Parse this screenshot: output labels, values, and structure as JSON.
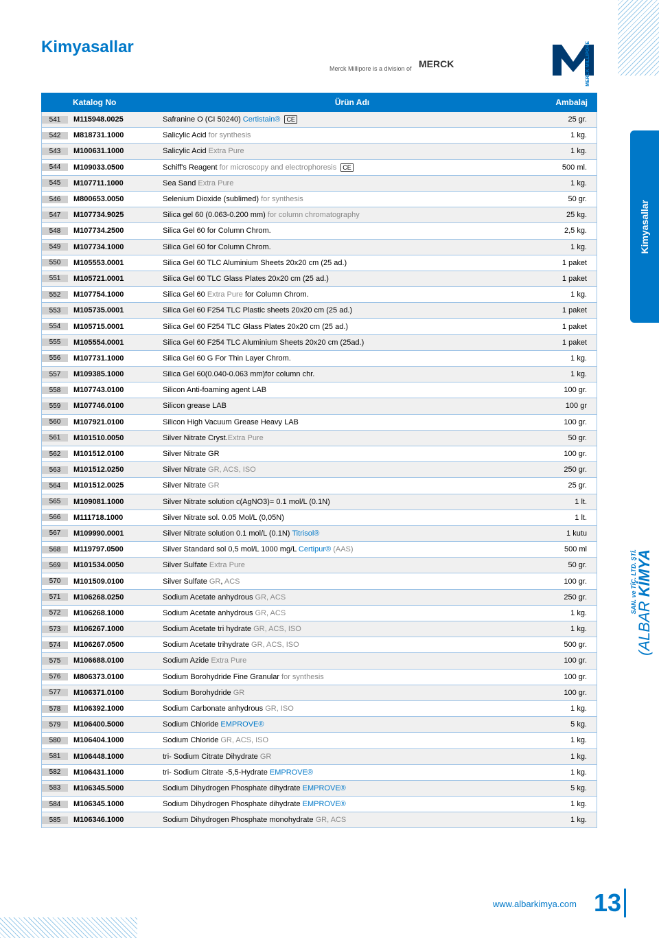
{
  "page_title": "Kimyasallar",
  "division_text": "Merck Millipore is a division of",
  "merck_label": "MERCK",
  "vert_brand": "MERCK MILLIPORE",
  "side_tab": "Kimyasallar",
  "company": {
    "part1": "(ALBAR ",
    "part2": "KİMYA"
  },
  "company_sub": "SAN. ve TİC. LTD. ŞTİ.",
  "footer_url": "www.albarkimya.com",
  "page_number": "13",
  "headers": {
    "katalog": "Katalog No",
    "urun": "Ürün Adı",
    "ambalaj": "Ambalaj"
  },
  "colors": {
    "brand_blue": "#0078c8",
    "row_alt": "#f0f0f0",
    "num_bg": "#cfcfcf",
    "border": "#9dc3e6",
    "grey_text": "#888"
  },
  "rows": [
    {
      "n": "541",
      "cat": "M115948.0025",
      "name": [
        {
          "t": "Safranine O (CI 50240) "
        },
        {
          "t": "Certistain®",
          "c": "bl"
        },
        {
          "t": " ",
          "ce": true
        }
      ],
      "pkg": "25 gr."
    },
    {
      "n": "542",
      "cat": "M818731.1000",
      "name": [
        {
          "t": "Salicylic Acid "
        },
        {
          "t": "for synthesis",
          "c": "gr"
        }
      ],
      "pkg": "1 kg."
    },
    {
      "n": "543",
      "cat": "M100631.1000",
      "name": [
        {
          "t": "Salicylic Acid "
        },
        {
          "t": "Extra Pure",
          "c": "gr"
        }
      ],
      "pkg": "1 kg."
    },
    {
      "n": "544",
      "cat": "M109033.0500",
      "name": [
        {
          "t": "Schiff's Reagent "
        },
        {
          "t": "for microscopy and electrophoresis ",
          "c": "gr"
        },
        {
          "t": "",
          "ce": true
        }
      ],
      "pkg": "500 ml."
    },
    {
      "n": "545",
      "cat": "M107711.1000",
      "name": [
        {
          "t": "Sea Sand "
        },
        {
          "t": "Extra Pure",
          "c": "gr"
        }
      ],
      "pkg": "1 kg."
    },
    {
      "n": "546",
      "cat": "M800653.0050",
      "name": [
        {
          "t": "Selenium Dioxide (sublimed) "
        },
        {
          "t": "for synthesis",
          "c": "gr"
        }
      ],
      "pkg": "50 gr."
    },
    {
      "n": "547",
      "cat": "M107734.9025",
      "name": [
        {
          "t": "Silica gel 60 (0.063-0.200 mm) "
        },
        {
          "t": "for column chromatography",
          "c": "gr"
        }
      ],
      "pkg": "25 kg."
    },
    {
      "n": "548",
      "cat": "M107734.2500",
      "name": [
        {
          "t": "Silica Gel 60 for Column Chrom."
        }
      ],
      "pkg": "2,5 kg."
    },
    {
      "n": "549",
      "cat": "M107734.1000",
      "name": [
        {
          "t": "Silica Gel 60 for Column Chrom."
        }
      ],
      "pkg": "1 kg."
    },
    {
      "n": "550",
      "cat": "M105553.0001",
      "name": [
        {
          "t": "Silica Gel 60 TLC Aluminium Sheets 20x20 cm (25 ad.)"
        }
      ],
      "pkg": "1 paket"
    },
    {
      "n": "551",
      "cat": "M105721.0001",
      "name": [
        {
          "t": "Silica Gel 60 TLC  Glass Plates 20x20 cm (25 ad.)"
        }
      ],
      "pkg": "1 paket"
    },
    {
      "n": "552",
      "cat": "M107754.1000",
      "name": [
        {
          "t": "Silica Gel 60 "
        },
        {
          "t": "Extra Pure",
          "c": "gr"
        },
        {
          "t": " for Column Chrom."
        }
      ],
      "pkg": "1 kg."
    },
    {
      "n": "553",
      "cat": "M105735.0001",
      "name": [
        {
          "t": "Silica Gel 60 F254 TLC  Plastic sheets 20x20 cm (25 ad.)"
        }
      ],
      "pkg": "1 paket"
    },
    {
      "n": "554",
      "cat": "M105715.0001",
      "name": [
        {
          "t": "Silica Gel 60 F254 TLC Glass Plates 20x20 cm  (25 ad.)"
        }
      ],
      "pkg": "1 paket"
    },
    {
      "n": "555",
      "cat": "M105554.0001",
      "name": [
        {
          "t": "Silica Gel 60 F254 TLC Aluminium Sheets 20x20 cm (25ad.)"
        }
      ],
      "pkg": "1 paket"
    },
    {
      "n": "556",
      "cat": "M107731.1000",
      "name": [
        {
          "t": "Silica Gel 60 G For Thin Layer Chrom."
        }
      ],
      "pkg": "1 kg."
    },
    {
      "n": "557",
      "cat": "M109385.1000",
      "name": [
        {
          "t": "Silica Gel 60(0.040-0.063 mm)for column chr."
        }
      ],
      "pkg": "1 kg."
    },
    {
      "n": "558",
      "cat": "M107743.0100",
      "name": [
        {
          "t": "Silicon Anti-foaming agent LAB"
        }
      ],
      "pkg": "100 gr."
    },
    {
      "n": "559",
      "cat": "M107746.0100",
      "name": [
        {
          "t": "Silicon grease LAB"
        }
      ],
      "pkg": "100 gr"
    },
    {
      "n": "560",
      "cat": "M107921.0100",
      "name": [
        {
          "t": "Silicon High Vacuum Grease Heavy LAB"
        }
      ],
      "pkg": "100 gr."
    },
    {
      "n": "561",
      "cat": "M101510.0050",
      "name": [
        {
          "t": "Silver Nitrate Cryst."
        },
        {
          "t": "Extra Pure",
          "c": "gr"
        }
      ],
      "pkg": "50 gr."
    },
    {
      "n": "562",
      "cat": "M101512.0100",
      "name": [
        {
          "t": "Silver Nitrate GR"
        }
      ],
      "pkg": "100 gr."
    },
    {
      "n": "563",
      "cat": "M101512.0250",
      "name": [
        {
          "t": "Silver Nitrate "
        },
        {
          "t": "GR, ACS, ISO",
          "c": "gr"
        }
      ],
      "pkg": "250 gr."
    },
    {
      "n": "564",
      "cat": "M101512.0025",
      "name": [
        {
          "t": "Silver Nitrate "
        },
        {
          "t": "GR",
          "c": "gr"
        }
      ],
      "pkg": "25 gr."
    },
    {
      "n": "565",
      "cat": "M109081.1000",
      "name": [
        {
          "t": "Silver Nitrate solution c(AgNO3)= 0.1 mol/L (0.1N)"
        }
      ],
      "pkg": "1 lt."
    },
    {
      "n": "566",
      "cat": "M111718.1000",
      "name": [
        {
          "t": "Silver Nitrate sol. 0.05 Mol/L (0,05N)"
        }
      ],
      "pkg": "1 lt."
    },
    {
      "n": "567",
      "cat": "M109990.0001",
      "name": [
        {
          "t": "Silver Nitrate solution 0.1 mol/L (0.1N) "
        },
        {
          "t": "Titrisol®",
          "c": "bl"
        }
      ],
      "pkg": "1 kutu"
    },
    {
      "n": "568",
      "cat": "M119797.0500",
      "name": [
        {
          "t": "Silver Standard sol 0,5 mol/L 1000 mg/L "
        },
        {
          "t": "Certipur®",
          "c": "bl"
        },
        {
          "t": " (AAS)",
          "c": "gr"
        }
      ],
      "pkg": "500 ml"
    },
    {
      "n": "569",
      "cat": "M101534.0050",
      "name": [
        {
          "t": "Silver Sulfate "
        },
        {
          "t": "Extra Pure",
          "c": "gr"
        }
      ],
      "pkg": "50 gr."
    },
    {
      "n": "570",
      "cat": "M101509.0100",
      "name": [
        {
          "t": "Silver Sulfate "
        },
        {
          "t": "GR",
          "c": "gr"
        },
        {
          "t": ", "
        },
        {
          "t": "  ACS",
          "c": "gr"
        }
      ],
      "pkg": "100 gr."
    },
    {
      "n": "571",
      "cat": "M106268.0250",
      "name": [
        {
          "t": "Sodium Acetate anhydrous "
        },
        {
          "t": "GR, ACS",
          "c": "gr"
        }
      ],
      "pkg": "250 gr."
    },
    {
      "n": "572",
      "cat": "M106268.1000",
      "name": [
        {
          "t": "Sodium Acetate anhydrous "
        },
        {
          "t": "GR, ACS",
          "c": "gr"
        }
      ],
      "pkg": "1 kg."
    },
    {
      "n": "573",
      "cat": "M106267.1000",
      "name": [
        {
          "t": "Sodium Acetate tri hydrate "
        },
        {
          "t": "GR, ACS, ISO",
          "c": "gr"
        }
      ],
      "pkg": "1 kg."
    },
    {
      "n": "574",
      "cat": "M106267.0500",
      "name": [
        {
          "t": "Sodium Acetate trihydrate "
        },
        {
          "t": "GR, ACS, ISO",
          "c": "gr"
        }
      ],
      "pkg": "500 gr."
    },
    {
      "n": "575",
      "cat": "M106688.0100",
      "name": [
        {
          "t": "Sodium Azide "
        },
        {
          "t": "Extra Pure",
          "c": "gr"
        }
      ],
      "pkg": "100 gr."
    },
    {
      "n": "576",
      "cat": "M806373.0100",
      "name": [
        {
          "t": "Sodium Borohydride Fine Granular "
        },
        {
          "t": "for synthesis",
          "c": "gr"
        }
      ],
      "pkg": "100 gr."
    },
    {
      "n": "577",
      "cat": "M106371.0100",
      "name": [
        {
          "t": "Sodium Borohydride "
        },
        {
          "t": "GR",
          "c": "gr"
        }
      ],
      "pkg": "100 gr."
    },
    {
      "n": "578",
      "cat": "M106392.1000",
      "name": [
        {
          "t": "Sodium Carbonate anhydrous "
        },
        {
          "t": "GR, ISO",
          "c": "gr"
        }
      ],
      "pkg": "1 kg."
    },
    {
      "n": "579",
      "cat": "M106400.5000",
      "name": [
        {
          "t": "Sodium Chloride "
        },
        {
          "t": "EMPROVE®",
          "c": "bl"
        }
      ],
      "pkg": "5 kg."
    },
    {
      "n": "580",
      "cat": "M106404.1000",
      "name": [
        {
          "t": "Sodium Chloride "
        },
        {
          "t": "GR, ACS, ISO",
          "c": "gr"
        }
      ],
      "pkg": "1 kg."
    },
    {
      "n": "581",
      "cat": "M106448.1000",
      "name": [
        {
          "t": "tri- Sodium Citrate Dihydrate "
        },
        {
          "t": "GR",
          "c": "gr"
        }
      ],
      "pkg": "1 kg."
    },
    {
      "n": "582",
      "cat": "M106431.1000",
      "name": [
        {
          "t": "tri- Sodium Citrate -5,5-Hydrate "
        },
        {
          "t": "EMPROVE®",
          "c": "bl"
        }
      ],
      "pkg": "1 kg."
    },
    {
      "n": "583",
      "cat": "M106345.5000",
      "name": [
        {
          "t": "Sodium Dihydrogen Phosphate dihydrate "
        },
        {
          "t": "EMPROVE®",
          "c": "bl"
        }
      ],
      "pkg": "5 kg."
    },
    {
      "n": "584",
      "cat": "M106345.1000",
      "name": [
        {
          "t": "Sodium Dihydrogen Phosphate dihydrate "
        },
        {
          "t": "EMPROVE®",
          "c": "bl"
        }
      ],
      "pkg": "1 kg."
    },
    {
      "n": "585",
      "cat": "M106346.1000",
      "name": [
        {
          "t": "Sodium Dihydrogen Phosphate monohydrate "
        },
        {
          "t": "GR, ACS",
          "c": "gr"
        }
      ],
      "pkg": "1 kg."
    }
  ]
}
